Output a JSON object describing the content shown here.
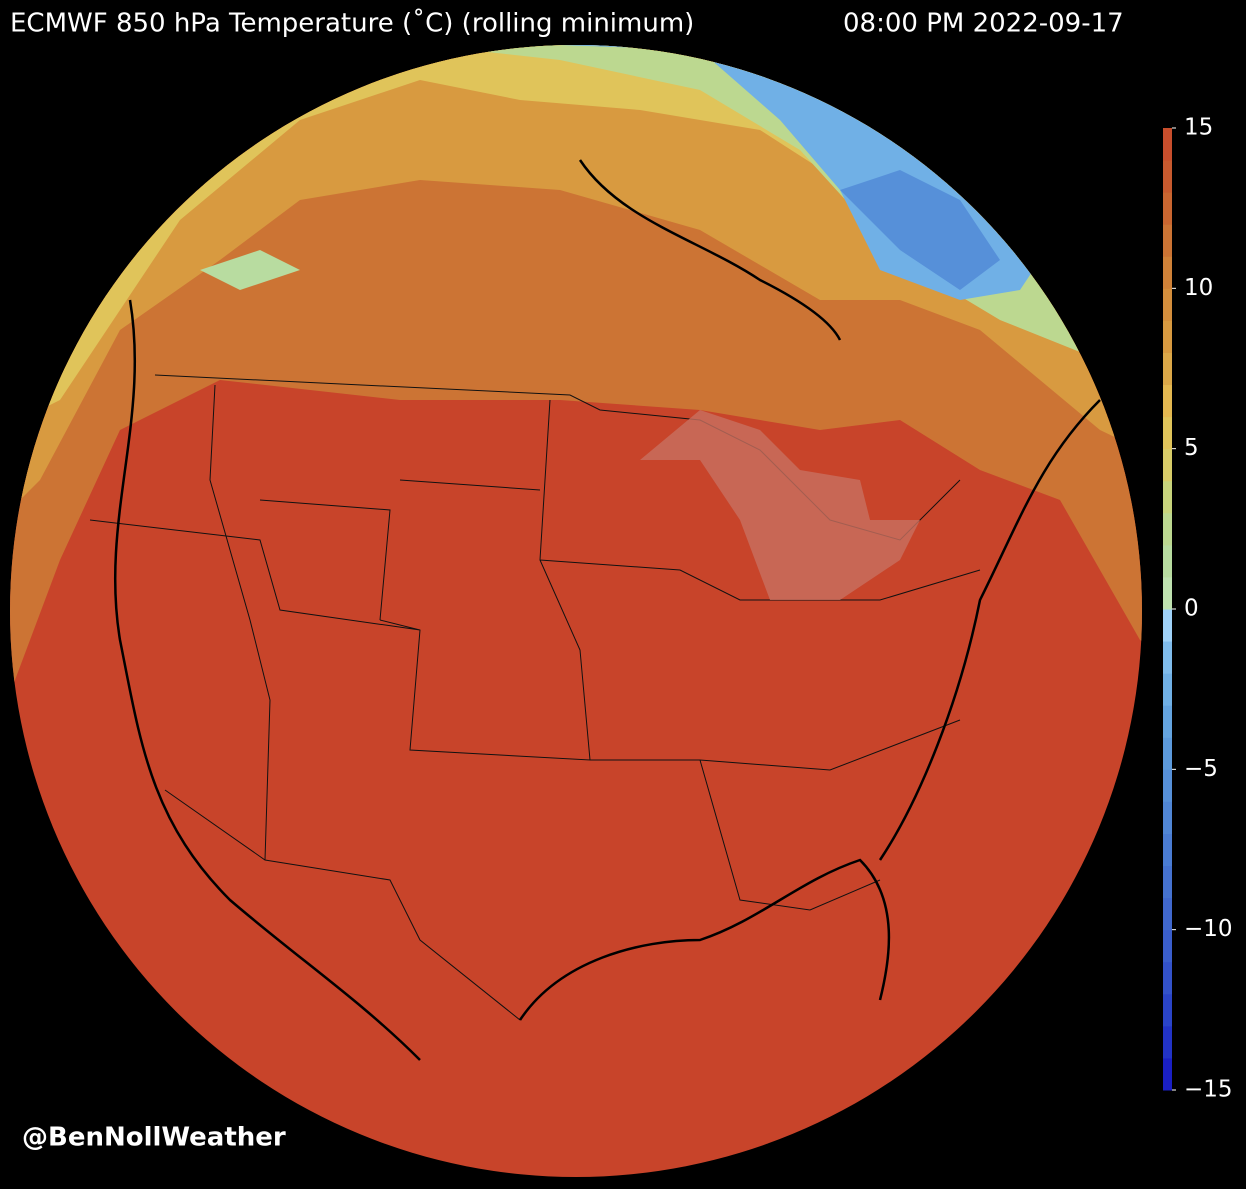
{
  "header": {
    "title": "ECMWF 850 hPa Temperature (˚C) (rolling minimum)",
    "timestamp": "08:00 PM 2022-09-17"
  },
  "credit": "@BenNollWeather",
  "colorbar": {
    "range": [
      -15,
      15
    ],
    "ticks": [
      {
        "value": -15,
        "label": "−15"
      },
      {
        "value": -10,
        "label": "−10"
      },
      {
        "value": -5,
        "label": "−5"
      },
      0,
      5,
      10,
      15
    ],
    "colors": [
      "#1a1fc4",
      "#2233c6",
      "#2a44c8",
      "#3352ca",
      "#3a5ecc",
      "#4068ce",
      "#4572d0",
      "#4a7cd3",
      "#5086d6",
      "#5690d9",
      "#5c9adc",
      "#64a4e0",
      "#70b0e6",
      "#80bcec",
      "#a0d2f8",
      "#bfe2b0",
      "#b8dca0",
      "#bcd890",
      "#c8d47c",
      "#d8cc68",
      "#e0c45a",
      "#e4b850",
      "#dca848",
      "#d89a40",
      "#d48e3c",
      "#d08238",
      "#cc7434",
      "#ca6630",
      "#c85a2e",
      "#c84e2c"
    ]
  }
}
